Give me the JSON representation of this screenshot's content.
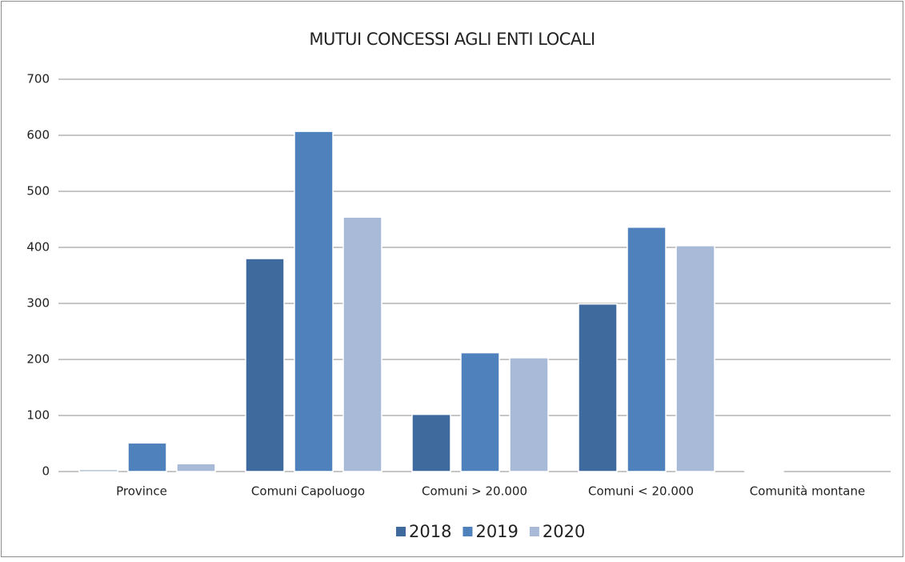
{
  "chart_data": {
    "type": "bar",
    "title": "MUTUI CONCESSI AGLI ENTI LOCALI",
    "categories": [
      "Province",
      "Comuni Capoluogo",
      "Comuni  > 20.000",
      "Comuni < 20.000",
      "Comunità montane"
    ],
    "series": [
      {
        "name": "2018",
        "color": "#3f6a9d",
        "values": [
          3,
          380,
          102,
          299,
          1
        ]
      },
      {
        "name": "2019",
        "color": "#4f81bd",
        "values": [
          51,
          607,
          212,
          436,
          0
        ]
      },
      {
        "name": "2020",
        "color": "#a9b9d8",
        "values": [
          14,
          454,
          203,
          403,
          0
        ]
      }
    ],
    "ylim": [
      0,
      700
    ],
    "yticks": [
      0,
      100,
      200,
      300,
      400,
      500,
      600,
      700
    ],
    "grid": true,
    "legend": "bottom"
  }
}
